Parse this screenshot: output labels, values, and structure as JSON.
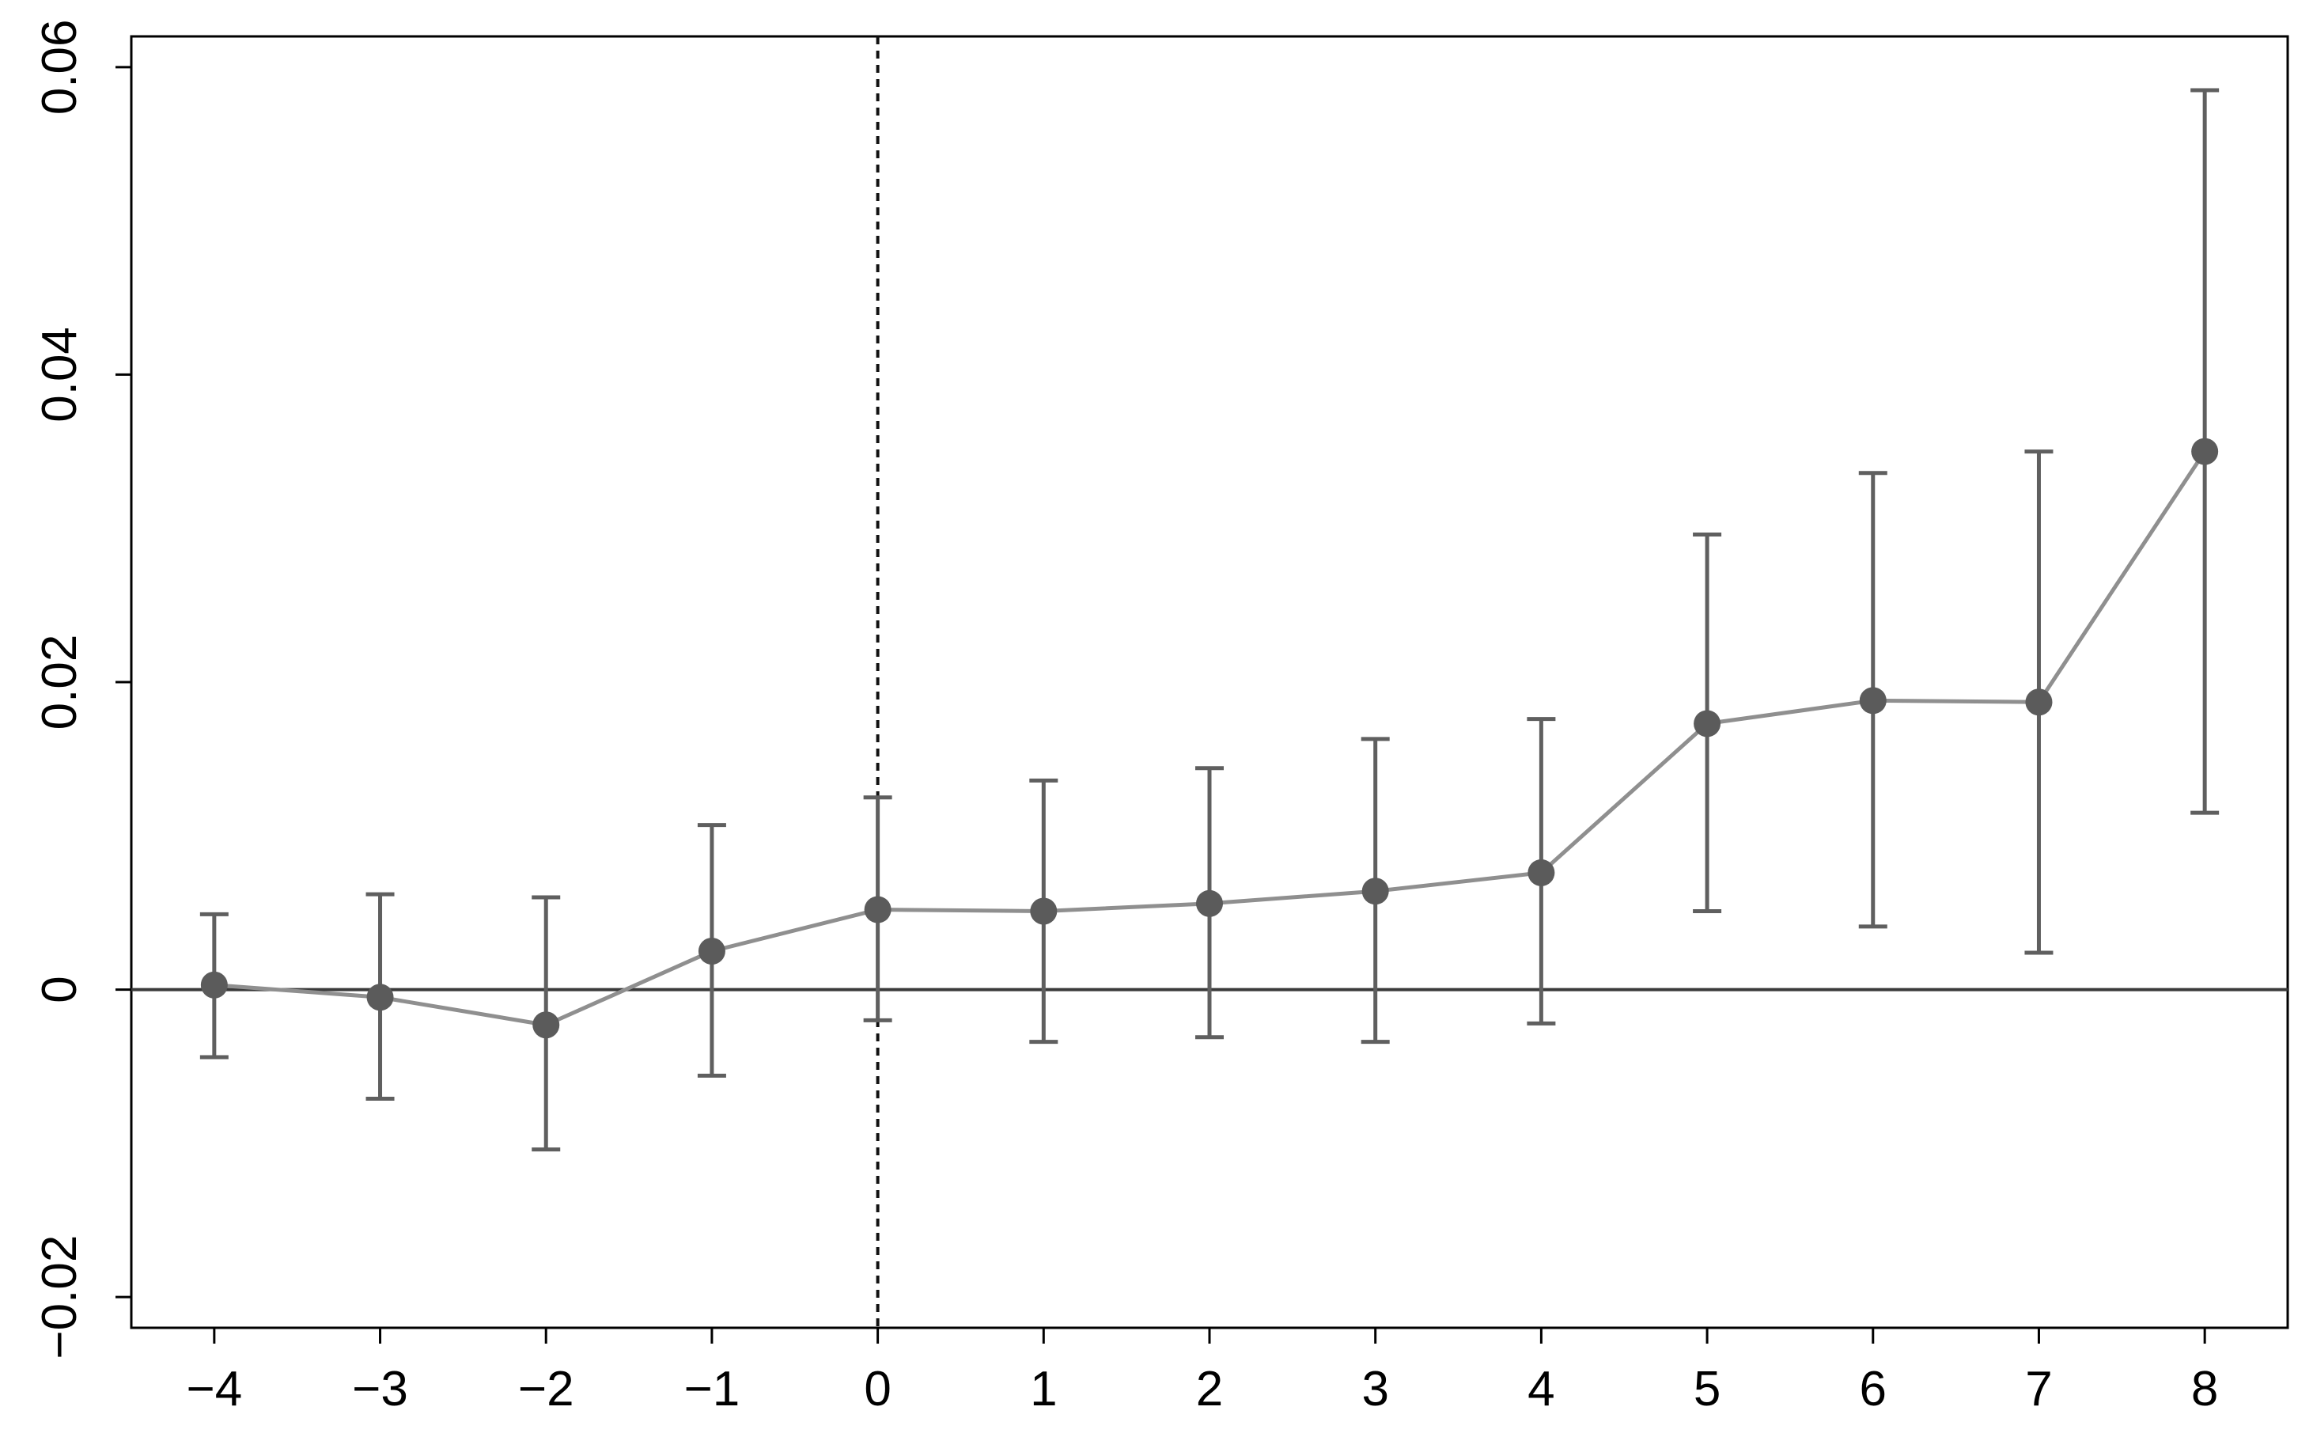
{
  "chart_data": {
    "type": "scatter",
    "title": "",
    "xlabel": "",
    "ylabel": "",
    "xlim": [
      -4.5,
      8.5
    ],
    "ylim": [
      -0.022,
      0.062
    ],
    "xticks": [
      -4,
      -3,
      -2,
      -1,
      0,
      1,
      2,
      3,
      4,
      5,
      6,
      7,
      8
    ],
    "xtick_labels": [
      "−4",
      "−3",
      "−2",
      "−1",
      "0",
      "1",
      "2",
      "3",
      "4",
      "5",
      "6",
      "7",
      "8"
    ],
    "yticks": [
      -0.02,
      0,
      0.02,
      0.04,
      0.06
    ],
    "ytick_labels": [
      "−0.02",
      "0",
      "0.02",
      "0.04",
      "0.06"
    ],
    "grid": false,
    "reference_lines": {
      "horizontal_y": 0,
      "vertical_x": 0,
      "vertical_style": "dashed"
    },
    "colors": {
      "marker": "#5b5b5b",
      "connecting_line": "#8f8f8f",
      "error_bar": "#5f5f5f",
      "axis": "#000000",
      "zero_line": "#3a3a3a"
    },
    "series": [
      {
        "x": [
          -4,
          -3,
          -2,
          -1,
          0,
          1,
          2,
          3,
          4,
          5,
          6,
          7,
          8
        ],
        "y": [
          0.0003,
          -0.0005,
          -0.0023,
          0.0025,
          0.0052,
          0.0051,
          0.0056,
          0.0064,
          0.0076,
          0.0173,
          0.0188,
          0.0187,
          0.035
        ],
        "lower": [
          -0.0044,
          -0.0071,
          -0.0104,
          -0.0056,
          -0.002,
          -0.0034,
          -0.0031,
          -0.0034,
          -0.0022,
          0.0051,
          0.0041,
          0.0024,
          0.0115
        ],
        "upper": [
          0.0049,
          0.0062,
          0.006,
          0.0107,
          0.0125,
          0.0136,
          0.0144,
          0.0163,
          0.0176,
          0.0296,
          0.0336,
          0.035,
          0.0585
        ]
      }
    ]
  }
}
